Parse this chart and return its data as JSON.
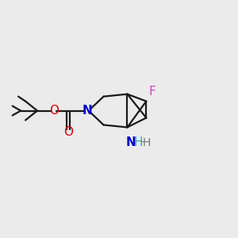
{
  "background_color": "#ebebeb",
  "fig_size": [
    3.0,
    3.0
  ],
  "dpi": 100,
  "bond_color": "#1a1a1a",
  "bond_lw": 1.6,
  "F_color": "#cc44cc",
  "N_color": "#0000cc",
  "NH_color": "#44aaaa",
  "H_color": "#777777",
  "O_color": "#dd0000",
  "F_label": "F",
  "N_label": "N",
  "NH_label": "N",
  "H_label": "H",
  "O1_label": "O",
  "O2_label": "O"
}
